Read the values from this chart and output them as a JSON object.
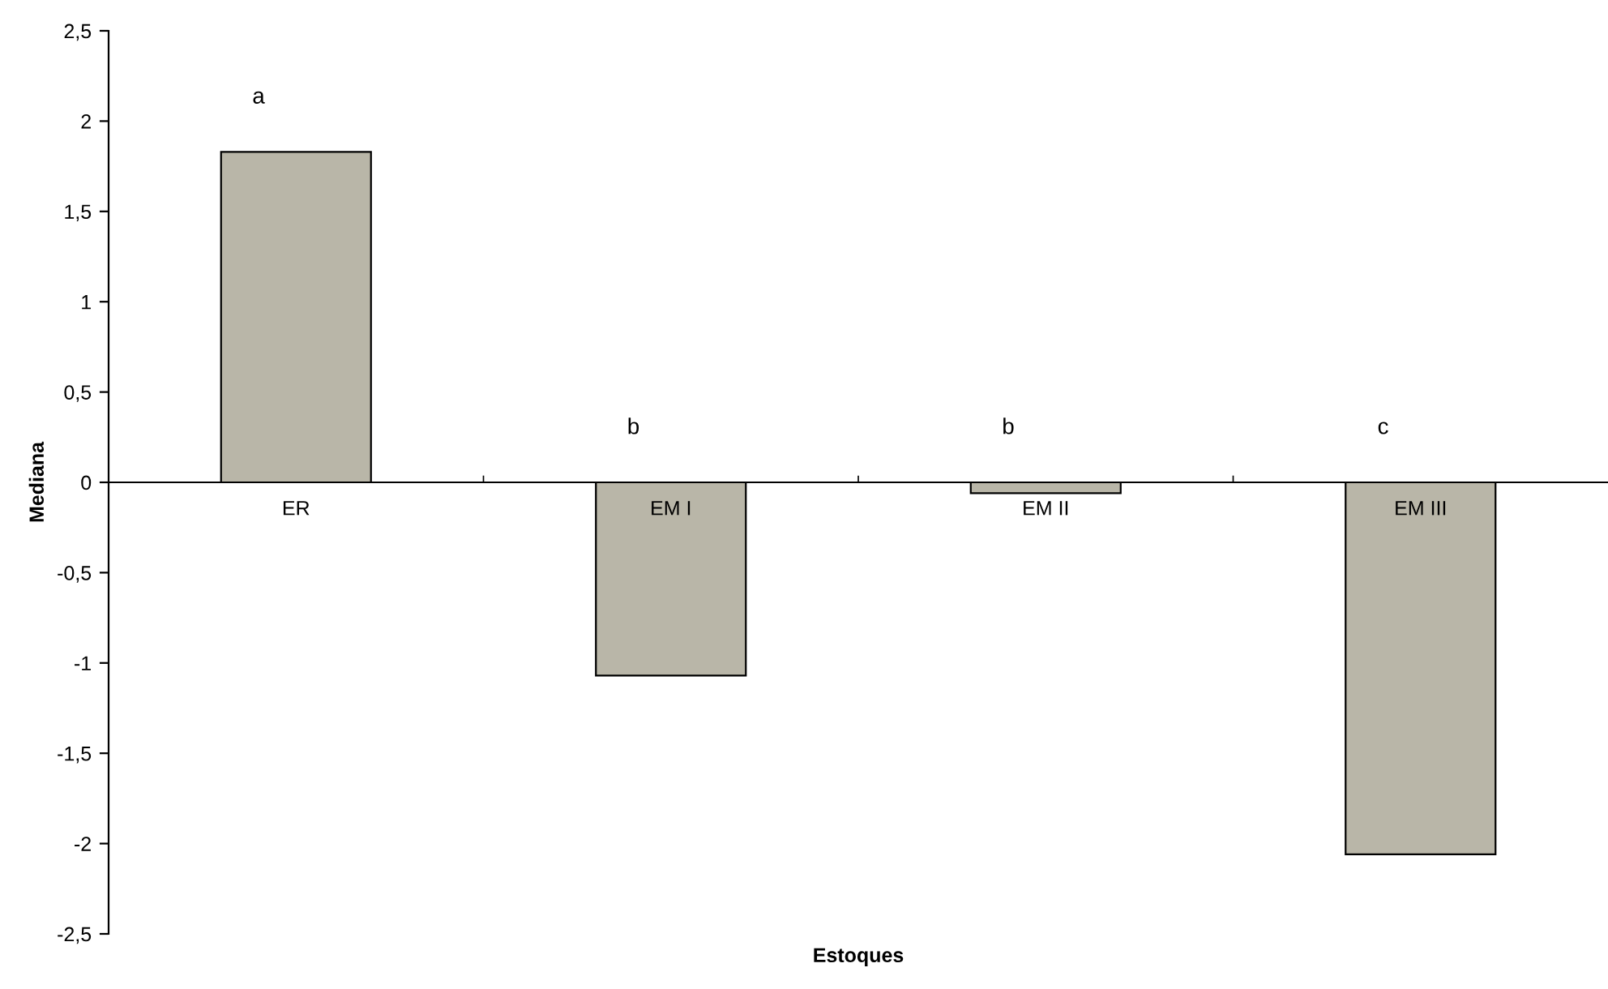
{
  "chart_data": {
    "type": "bar",
    "xlabel": "Estoques",
    "ylabel": "Mediana",
    "categories": [
      "ER",
      "EM I",
      "EM II",
      "EM III"
    ],
    "values": [
      1.83,
      -1.07,
      -0.06,
      -2.06
    ],
    "color": "#b9b6a8",
    "ylim": [
      -2.5,
      2.5
    ],
    "yticks": [
      {
        "value": -2.5,
        "label": "-2,5"
      },
      -2,
      {
        "value": -1.5,
        "label": "-1,5"
      },
      -1,
      {
        "value": -0.5,
        "label": "-0,5"
      },
      0,
      {
        "value": 0.5,
        "label": "0,5"
      },
      1,
      {
        "value": 1.5,
        "label": "1,5"
      },
      2,
      {
        "value": 2.5,
        "label": "2,5"
      }
    ],
    "grid": false,
    "annotations": [
      "a",
      "b",
      "b",
      "c"
    ]
  }
}
